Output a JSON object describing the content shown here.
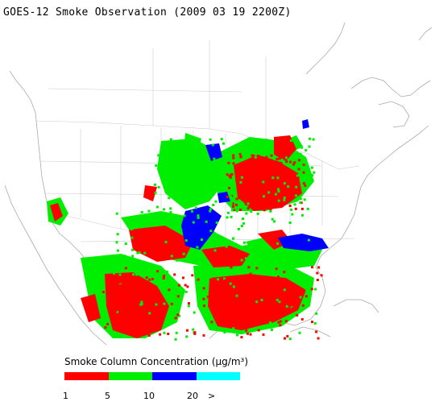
{
  "title": "GOES-12 Smoke Observation (2009 03 19  2200Z)",
  "legend": {
    "title": "Smoke Column Concentration (μg/m³)",
    "segments": [
      {
        "from": "1",
        "to": "5",
        "color": "#ff0000"
      },
      {
        "from": "5",
        "to": "10",
        "color": "#00ee00"
      },
      {
        "from": "10",
        "to": "20",
        "color": "#0000ff"
      },
      {
        "from": "20",
        "to": ">",
        "color": "#00ffff"
      }
    ],
    "tick_labels": [
      "1",
      "5",
      "10",
      "20",
      ">"
    ]
  },
  "map_colors": {
    "coast": "#aaaaaa",
    "borders": "#cccccc",
    "background": "#ffffff"
  }
}
